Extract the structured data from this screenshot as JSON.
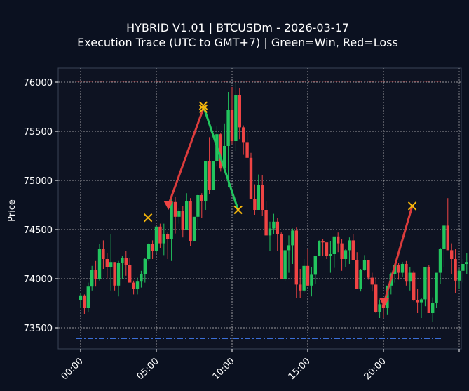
{
  "chart_data": {
    "type": "candlestick",
    "title": "HYBRID V1.01 | BTCUSDm - 2026-03-17",
    "subtitle": "Execution Trace (UTC to GMT+7) | Green=Win, Red=Loss",
    "xlabel": "",
    "ylabel": "Price",
    "ylim": [
      73280,
      76150
    ],
    "xlim_hours": [
      -1.5,
      25.1
    ],
    "y_ticks": [
      73500,
      74000,
      74500,
      75000,
      75500,
      76000
    ],
    "x_ticks": [
      {
        "label": "00:00",
        "hour": 0
      },
      {
        "label": "05:00",
        "hour": 5
      },
      {
        "label": "10:00",
        "hour": 10
      },
      {
        "label": "15:00",
        "hour": 15
      },
      {
        "label": "20:00",
        "hour": 20
      }
    ],
    "grid": true,
    "colors": {
      "background": "#0b1120",
      "up": "#22c55e",
      "down": "#ef4444",
      "win_line": "#22c55e",
      "loss_line": "#dc3c3c",
      "exit_marker": "#f5b50b",
      "entry_marker": "#ef4444",
      "upper_level": "#dc3c3c",
      "lower_level": "#3b6fd8",
      "grid": "#c8c8c8",
      "spine": "#3a4356"
    },
    "reference_lines": [
      {
        "name": "upper-level",
        "price": 76010,
        "style": "dashdot",
        "color": "#dc3c3c"
      },
      {
        "name": "lower-level",
        "price": 73390,
        "style": "dashdot",
        "color": "#3b6fd8"
      }
    ],
    "candles_step_hours": 0.25,
    "candles_start_hour": 0,
    "candles": [
      [
        73780,
        73850,
        73700,
        73830
      ],
      [
        73830,
        73840,
        73640,
        73700
      ],
      [
        73700,
        73960,
        73660,
        73920
      ],
      [
        73920,
        74130,
        73880,
        74090
      ],
      [
        74090,
        74180,
        73920,
        74000
      ],
      [
        74000,
        74350,
        73980,
        74300
      ],
      [
        74300,
        74390,
        74100,
        74200
      ],
      [
        74200,
        74260,
        74000,
        74120
      ],
      [
        74120,
        74450,
        73880,
        74170
      ],
      [
        74170,
        74100,
        73880,
        73930
      ],
      [
        73930,
        74180,
        73820,
        74160
      ],
      [
        74160,
        74230,
        74000,
        74210
      ],
      [
        74210,
        74280,
        74030,
        74140
      ],
      [
        74140,
        74210,
        74010,
        73960
      ],
      [
        73960,
        73980,
        73840,
        73900
      ],
      [
        73900,
        74010,
        73840,
        73970
      ],
      [
        73970,
        74080,
        73910,
        74050
      ],
      [
        74050,
        74210,
        73960,
        74200
      ],
      [
        74200,
        74360,
        74180,
        74350
      ],
      [
        74350,
        74390,
        74200,
        74280
      ],
      [
        74280,
        74520,
        74260,
        74530
      ],
      [
        74530,
        74560,
        74310,
        74360
      ],
      [
        74360,
        74560,
        74240,
        74450
      ],
      [
        74450,
        74470,
        74200,
        74400
      ],
      [
        74400,
        74820,
        74180,
        74780
      ],
      [
        74780,
        74830,
        74460,
        74630
      ],
      [
        74630,
        74720,
        74560,
        74690
      ],
      [
        74690,
        74740,
        74420,
        74500
      ],
      [
        74500,
        74870,
        74530,
        74790
      ],
      [
        74790,
        74820,
        74330,
        74380
      ],
      [
        74380,
        74620,
        74380,
        74630
      ],
      [
        74630,
        74860,
        74500,
        74850
      ],
      [
        74850,
        74870,
        74620,
        74790
      ],
      [
        74790,
        75100,
        74700,
        75200
      ],
      [
        75200,
        75440,
        74860,
        74900
      ],
      [
        74900,
        75180,
        74900,
        75200
      ],
      [
        75200,
        75550,
        75150,
        75470
      ],
      [
        75470,
        75480,
        75090,
        75120
      ],
      [
        75120,
        75580,
        75140,
        75350
      ],
      [
        75350,
        75900,
        74930,
        75720
      ],
      [
        75720,
        75950,
        75370,
        75400
      ],
      [
        75400,
        76000,
        75300,
        75870
      ],
      [
        75870,
        75940,
        75420,
        75540
      ],
      [
        75540,
        75560,
        75260,
        75390
      ],
      [
        75390,
        75500,
        75240,
        75230
      ],
      [
        75230,
        75280,
        74880,
        74810
      ],
      [
        74810,
        74960,
        74650,
        74700
      ],
      [
        74700,
        75060,
        74740,
        74950
      ],
      [
        74950,
        75050,
        74640,
        74700
      ],
      [
        74700,
        74790,
        74440,
        74440
      ],
      [
        74440,
        74580,
        74280,
        74510
      ],
      [
        74510,
        74660,
        74450,
        74580
      ],
      [
        74580,
        74620,
        74280,
        74450
      ],
      [
        74450,
        74470,
        74300,
        74000
      ],
      [
        74000,
        74280,
        73980,
        74290
      ],
      [
        74290,
        74440,
        74060,
        74340
      ],
      [
        74340,
        74510,
        74150,
        74490
      ],
      [
        74490,
        74520,
        73800,
        73940
      ],
      [
        73940,
        74100,
        73800,
        73880
      ],
      [
        73880,
        74200,
        73860,
        74130
      ],
      [
        74130,
        74300,
        73950,
        73930
      ],
      [
        73930,
        74120,
        73820,
        74040
      ],
      [
        74040,
        74210,
        73950,
        74230
      ],
      [
        74230,
        74390,
        74230,
        74380
      ],
      [
        74380,
        74400,
        74230,
        74370
      ],
      [
        74370,
        74340,
        74200,
        74230
      ],
      [
        74230,
        74380,
        74060,
        74250
      ],
      [
        74250,
        74380,
        74110,
        74430
      ],
      [
        74430,
        74470,
        74270,
        74360
      ],
      [
        74360,
        74400,
        74080,
        74200
      ],
      [
        74200,
        74300,
        74120,
        74290
      ],
      [
        74290,
        74420,
        74150,
        74390
      ],
      [
        74390,
        74450,
        74220,
        74190
      ],
      [
        74190,
        74270,
        73990,
        73900
      ],
      [
        73900,
        74100,
        73870,
        74090
      ],
      [
        74090,
        74240,
        74080,
        74190
      ],
      [
        74190,
        74190,
        73990,
        74010
      ],
      [
        74010,
        74060,
        73870,
        73940
      ],
      [
        73940,
        74020,
        73650,
        73660
      ],
      [
        73660,
        73790,
        73600,
        73740
      ],
      [
        73740,
        73790,
        73600,
        73700
      ],
      [
        73700,
        73920,
        73630,
        73930
      ],
      [
        73930,
        74060,
        73840,
        74050
      ],
      [
        74050,
        74140,
        73960,
        74140
      ],
      [
        74140,
        74160,
        73990,
        74060
      ],
      [
        74060,
        74170,
        74020,
        74150
      ],
      [
        74150,
        74180,
        73930,
        73970
      ],
      [
        73970,
        74120,
        73880,
        74060
      ],
      [
        74060,
        74080,
        73770,
        73780
      ],
      [
        73780,
        73900,
        73650,
        73760
      ],
      [
        73760,
        73800,
        73600,
        73790
      ],
      [
        73790,
        74100,
        73720,
        74120
      ],
      [
        74120,
        74140,
        73750,
        73650
      ],
      [
        73650,
        73810,
        73560,
        73750
      ],
      [
        73750,
        74000,
        73700,
        74060
      ],
      [
        74060,
        74310,
        73950,
        74300
      ],
      [
        74300,
        74500,
        74120,
        74540
      ],
      [
        74540,
        74820,
        74400,
        74290
      ],
      [
        74290,
        74360,
        74050,
        74200
      ],
      [
        74200,
        74300,
        73850,
        73980
      ],
      [
        73980,
        74100,
        73900,
        74080
      ],
      [
        74080,
        74200,
        73960,
        74150
      ],
      [
        74150,
        74260,
        74050,
        74170
      ]
    ],
    "trades": [
      {
        "result": "loss",
        "entry": {
          "hour": 5.8,
          "price": 74750,
          "marker": "triangle-down"
        },
        "exit": {
          "hour": 8.1,
          "price": 75730,
          "marker": "x"
        }
      },
      {
        "result": "win",
        "entry": {
          "hour": 8.1,
          "price": 75760,
          "marker": "x"
        },
        "exit": {
          "hour": 10.4,
          "price": 74700,
          "marker": "x"
        }
      },
      {
        "result": "loss",
        "entry": {
          "hour": 20.05,
          "price": 73760,
          "marker": "triangle-down"
        },
        "exit": {
          "hour": 21.9,
          "price": 74740,
          "marker": "x"
        }
      }
    ],
    "standalone_markers": [
      {
        "hour": 4.45,
        "price": 74620,
        "marker": "x",
        "color": "#f5b50b"
      }
    ],
    "legend": null
  }
}
